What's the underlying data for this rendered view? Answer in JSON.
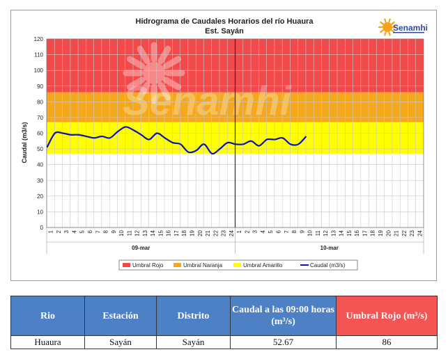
{
  "chart_data": {
    "type": "line",
    "title": "Hidrograma de Caudales Horarios del río Huaura",
    "subtitle": "Est. Sayán",
    "ylabel": "Caudal  (m3/s)",
    "ylim": [
      0,
      120
    ],
    "yticks": [
      "0",
      "10",
      "20",
      "30",
      "40",
      "50",
      "60",
      "70",
      "80",
      "90",
      "100",
      "110",
      "120"
    ],
    "x_hour_labels": [
      "1",
      "2",
      "3",
      "4",
      "5",
      "6",
      "7",
      "8",
      "9",
      "10",
      "11",
      "12",
      "13",
      "14",
      "15",
      "16",
      "17",
      "18",
      "19",
      "20",
      "21",
      "22",
      "23",
      "24"
    ],
    "day_labels": [
      "09-mar",
      "10-mar"
    ],
    "grid": true,
    "bands": [
      {
        "name": "Umbral Rojo",
        "from": 86,
        "to": 120,
        "color": "#f24a4a"
      },
      {
        "name": "Umbral Naranja",
        "from": 67,
        "to": 86,
        "color": "#f5a81c"
      },
      {
        "name": "Umbral Amarillo",
        "from": 47,
        "to": 67,
        "color": "#ffff00"
      }
    ],
    "series": [
      {
        "name": "Caudal (m3/s)",
        "color": "#0a14b4",
        "values": [
          51,
          60,
          60,
          59,
          59,
          58,
          57,
          58,
          57,
          61,
          64,
          62,
          59,
          56,
          60,
          57,
          54,
          53,
          48,
          49,
          53,
          47,
          50,
          54,
          53,
          53,
          55,
          52,
          56,
          56,
          57,
          53,
          53,
          58
        ]
      }
    ],
    "legend_position": "bottom",
    "legend": [
      "Umbral Rojo",
      "Umbral Naranja",
      "Umbral Amarillo",
      "Caudal (m3/s)"
    ]
  },
  "logo": {
    "text": "Senamhi",
    "watermark": "Senamhi"
  },
  "table": {
    "headers": [
      "Rio",
      "Estación",
      "Distrito",
      "Caudal a las 09:00 horas (m³/s)",
      "Umbral Rojo (m³/s)"
    ],
    "row": [
      "Huaura",
      "Sayán",
      "Sayán",
      "52.67",
      "86"
    ]
  },
  "colors": {
    "header_blue": "#4e80c5",
    "header_red": "#f35454",
    "line": "#0a14b4"
  }
}
